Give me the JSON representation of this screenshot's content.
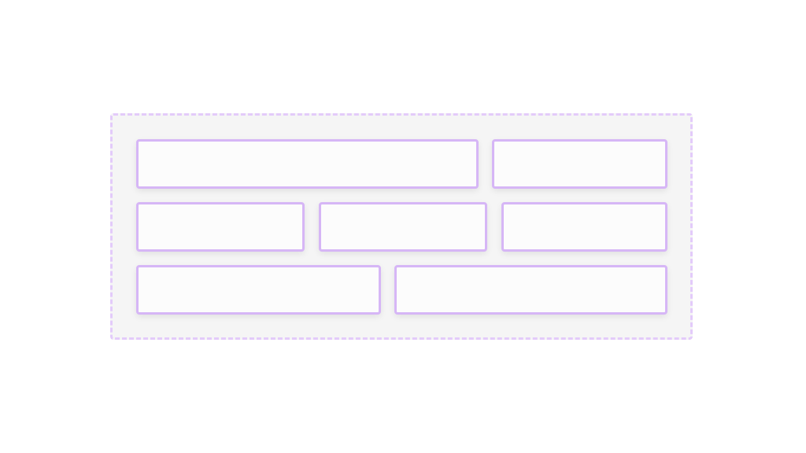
{
  "colors": {
    "container_border": "#e3cbfa",
    "container_background": "#f5f5f5",
    "box_border": "#d6b6f6",
    "box_background": "#fcfcfc"
  },
  "rows": [
    {
      "boxes": 2
    },
    {
      "boxes": 3
    },
    {
      "boxes": 2
    }
  ]
}
